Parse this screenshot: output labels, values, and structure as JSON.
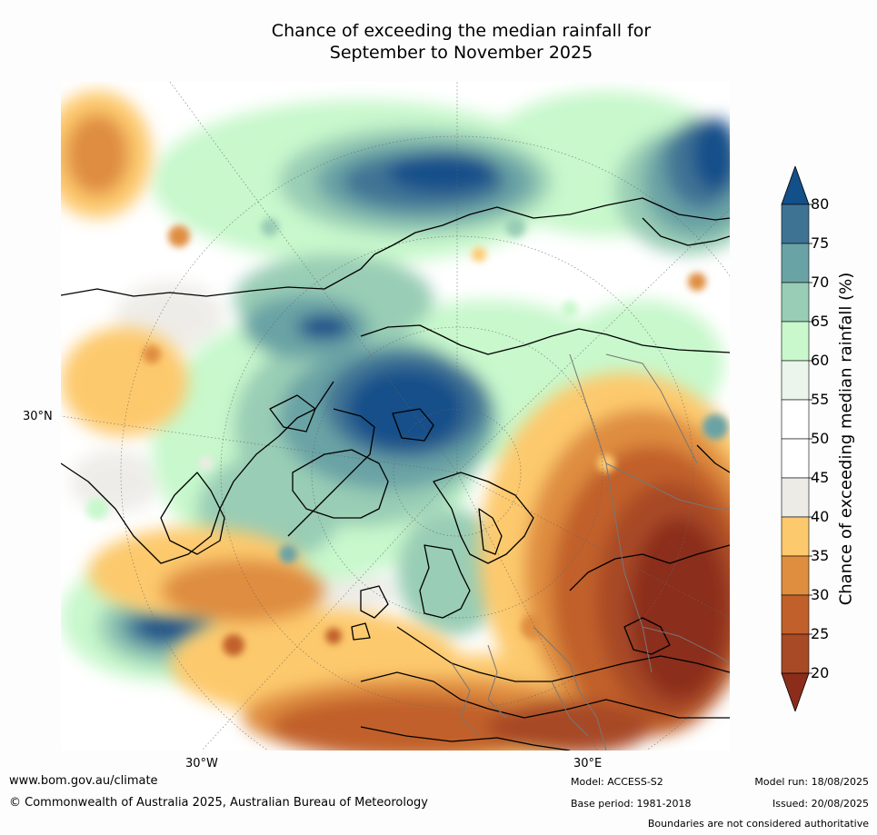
{
  "title_line1": "Chance of exceeding the median rainfall for",
  "title_line2": "September to November 2025",
  "map": {
    "projection": "north polar stereographic",
    "lon_labels": [
      "30°W",
      "30°E"
    ],
    "lat_labels": [
      "30°N"
    ]
  },
  "colorbar": {
    "label": "Chance of exceeding median rainfall (%)",
    "ticks": [
      "80",
      "75",
      "70",
      "65",
      "60",
      "55",
      "50",
      "45",
      "40",
      "35",
      "30",
      "25",
      "20"
    ],
    "colors": [
      "#13508a",
      "#3f7394",
      "#6aa3a5",
      "#99cdb5",
      "#c8f8cc",
      "#ebf5eb",
      "#ffffff",
      "#ffffff",
      "#edebe6",
      "#fdc96d",
      "#df8d3f",
      "#c1602b",
      "#a84a25",
      "#8c2d1c"
    ]
  },
  "footer": {
    "website": "www.bom.gov.au/climate",
    "copyright": "© Commonwealth of Australia 2025, Australian Bureau of Meteorology",
    "model": "Model: ACCESS-S2",
    "base_period": "Base period: 1981-2018",
    "model_run": "Model run: 18/08/2025",
    "issued": "Issued: 20/08/2025",
    "disclaimer": "Boundaries are not considered authoritative"
  }
}
